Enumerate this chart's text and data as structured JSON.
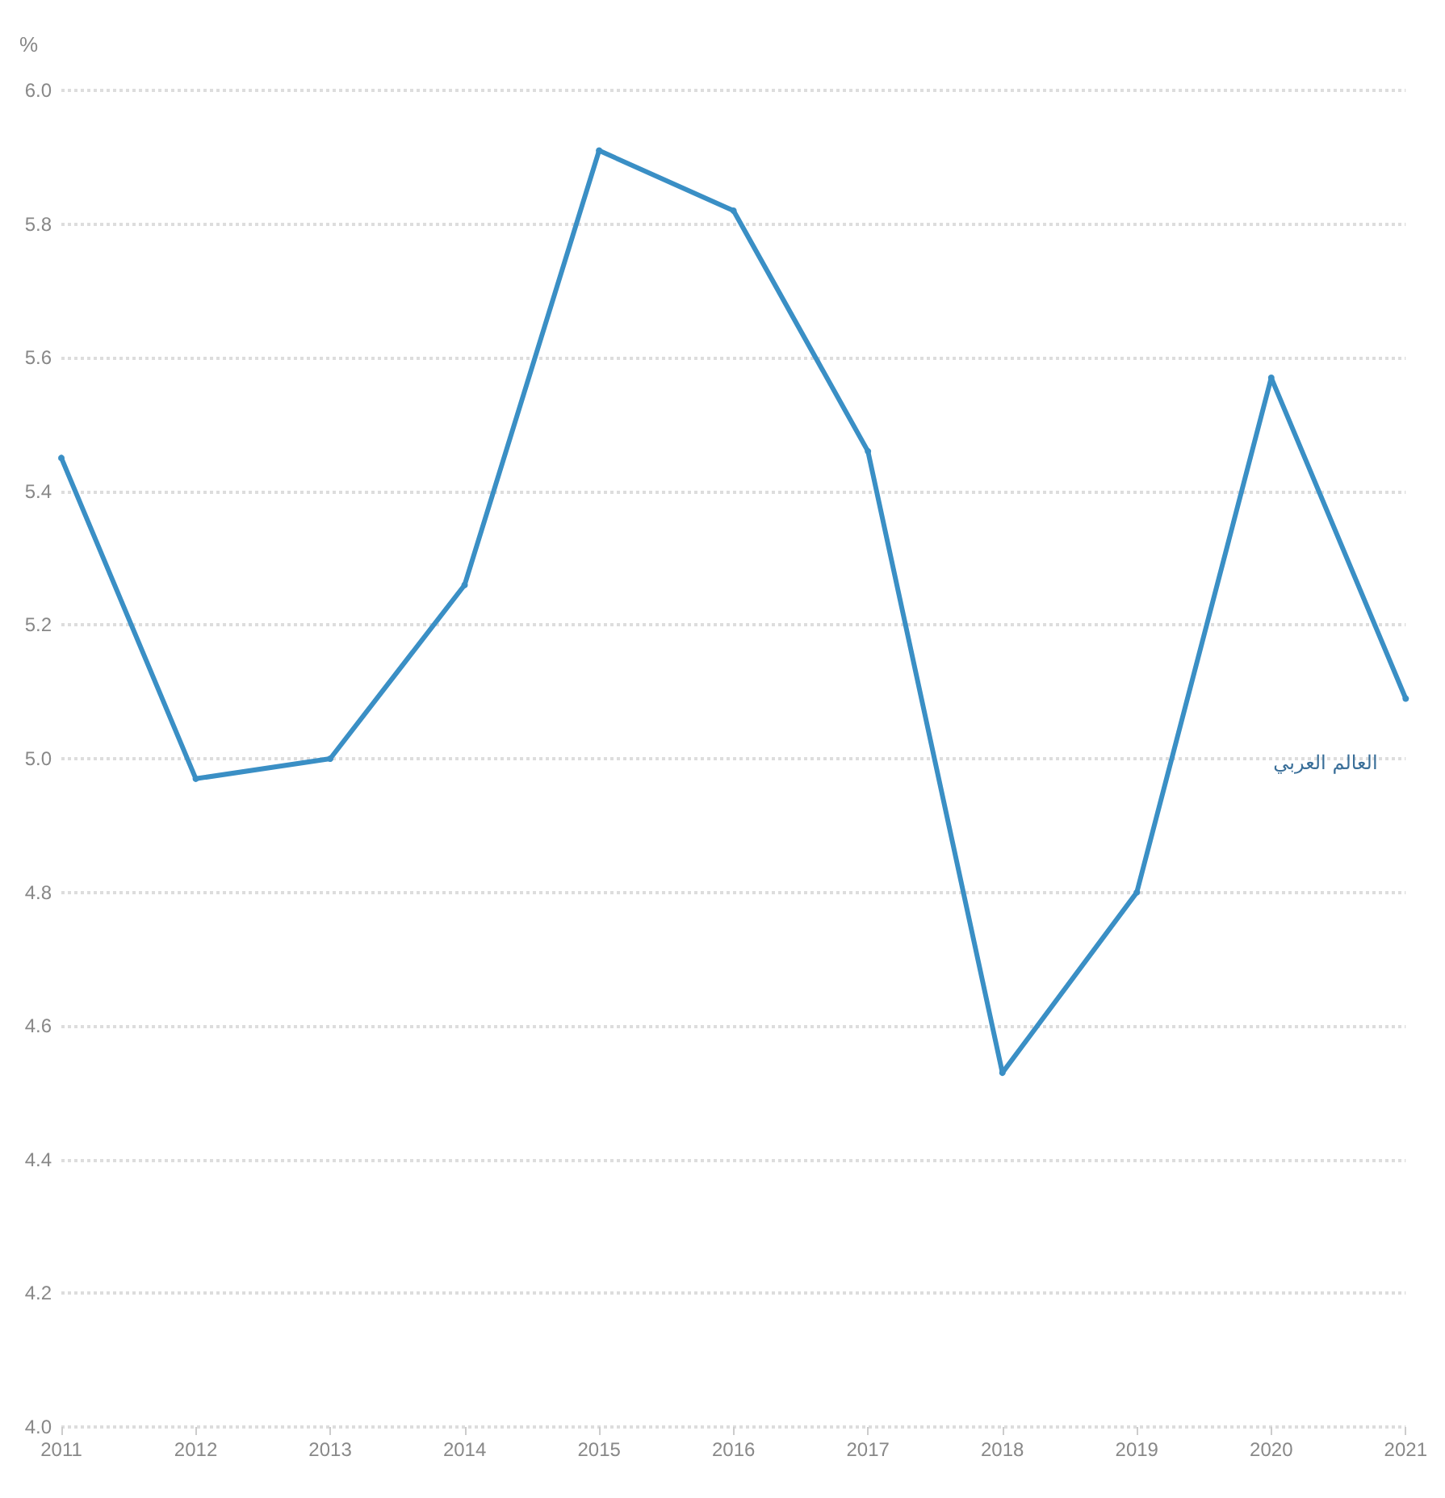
{
  "chart_data": {
    "type": "line",
    "ylabel": "%",
    "categories": [
      "2011",
      "2012",
      "2013",
      "2014",
      "2015",
      "2016",
      "2017",
      "2018",
      "2019",
      "2020",
      "2021"
    ],
    "series": [
      {
        "name": "العالم العربي",
        "color": "#3a8fc5",
        "values": [
          5.45,
          4.97,
          5.0,
          5.26,
          5.91,
          5.82,
          5.46,
          4.53,
          4.8,
          5.57,
          5.09
        ]
      }
    ],
    "ylim": [
      4.0,
      6.0
    ],
    "yticks": [
      {
        "value": 4,
        "label": "4.0"
      },
      4.2,
      4.4,
      4.6,
      4.8,
      {
        "value": 5,
        "label": "5.0"
      },
      5.2,
      5.4,
      5.6,
      5.8,
      {
        "value": 6,
        "label": "6.0"
      }
    ],
    "grid": "y",
    "marker": "circle",
    "line_style": "solid",
    "legend": false
  }
}
